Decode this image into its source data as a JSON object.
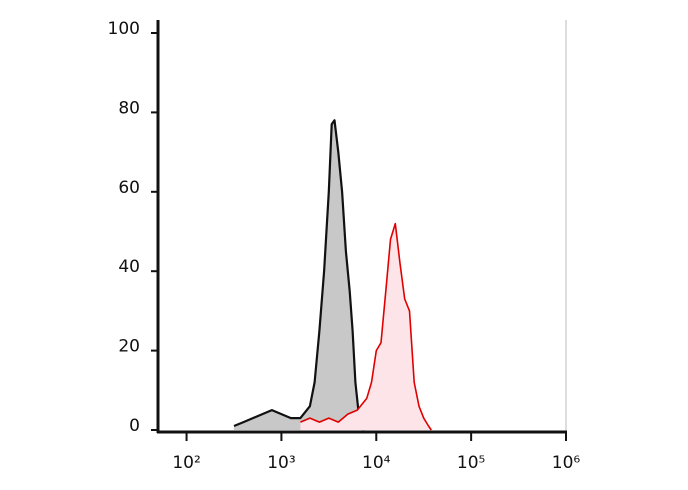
{
  "chart_data": {
    "type": "histogram-overlay",
    "xscale": "log",
    "xlim": [
      50,
      1000000
    ],
    "ylim": [
      0,
      100
    ],
    "xticks": [
      {
        "value": 100,
        "label": "10²"
      },
      {
        "value": 1000,
        "label": "10³"
      },
      {
        "value": 10000,
        "label": "10⁴"
      },
      {
        "value": 100000,
        "label": "10⁵"
      },
      {
        "value": 1000000,
        "label": "10⁶"
      }
    ],
    "yticks": [
      0,
      20,
      40,
      60,
      80,
      100
    ],
    "series": [
      {
        "color": "#111111",
        "fill": "#c8c8c8",
        "x": [
          316,
          398,
          501,
          631,
          794,
          1000,
          1259,
          1585,
          1995,
          2239,
          2512,
          2818,
          3162,
          3388,
          3631,
          3981,
          4365,
          4786,
          5248,
          5623,
          6026,
          6607,
          7413
        ],
        "values": [
          1,
          2,
          3,
          4,
          5,
          4,
          3,
          3,
          6,
          12,
          25,
          40,
          60,
          77,
          78,
          70,
          60,
          45,
          35,
          25,
          12,
          3,
          0
        ]
      },
      {
        "color": "#e00000",
        "fill": "#fde4e8",
        "x": [
          1585,
          1995,
          2512,
          3162,
          3981,
          5012,
          6310,
          7943,
          8913,
          10000,
          11220,
          12589,
          14125,
          15849,
          17783,
          19953,
          22387,
          25119,
          28184,
          31623,
          35481,
          38019
        ],
        "values": [
          2,
          3,
          2,
          3,
          2,
          4,
          5,
          8,
          12,
          20,
          22,
          35,
          48,
          52,
          42,
          33,
          30,
          12,
          6,
          3,
          1,
          0
        ]
      }
    ]
  }
}
